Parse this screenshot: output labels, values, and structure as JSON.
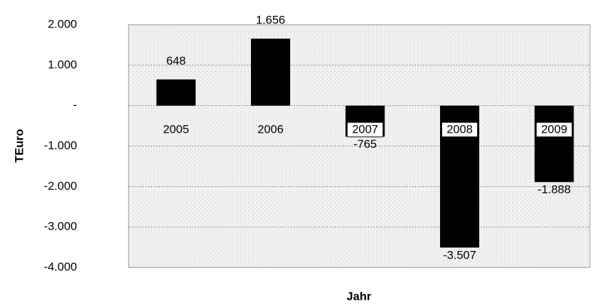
{
  "chart_data": {
    "type": "bar",
    "categories": [
      "2005",
      "2006",
      "2007",
      "2008",
      "2009"
    ],
    "values": [
      648,
      1656,
      -765,
      -3507,
      -1888
    ],
    "value_labels": [
      "648",
      "1.656",
      "-765",
      "-3.507",
      "-1.888"
    ],
    "color": "#000000",
    "ylim": [
      -4000,
      2000
    ],
    "yticks": [
      {
        "value": 2000,
        "label": "2.000"
      },
      {
        "value": 1000,
        "label": "1.000"
      },
      {
        "value": 0,
        "label": "-"
      },
      {
        "value": -1000,
        "label": "-1.000"
      },
      {
        "value": -2000,
        "label": "-2.000"
      },
      {
        "value": -3000,
        "label": "-3.000"
      },
      {
        "value": -4000,
        "label": "-4.000"
      }
    ],
    "ylabel": "TEuro",
    "xlabel": "Jahr",
    "grid": true
  }
}
